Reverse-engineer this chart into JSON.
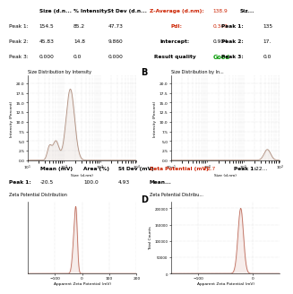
{
  "background_color": "#ffffff",
  "plot_bg": "#ffffff",
  "grid_color": "#d0d0d0",
  "line_color_left": "#b09080",
  "line_color_right": "#c07060",
  "red_text": "#cc2200",
  "green_text": "#009900",
  "table_left_headers": [
    "Size (d.n...",
    "% Intensity:",
    "St Dev (d.n..."
  ],
  "table_left_rows": [
    [
      "Peak 1:",
      "154.5",
      "85.2",
      "47.73"
    ],
    [
      "Peak 2:",
      "45.83",
      "14.8",
      "9.860"
    ],
    [
      "Peak 3:",
      "0.000",
      "0.0",
      "0.000"
    ]
  ],
  "z_average_label": "Z-Average (d.nm):",
  "z_average_value": "138.9",
  "pdi_label": "PdI:",
  "pdi_value": "0.343",
  "intercept_label": "Intercept:",
  "intercept_value": "0.934",
  "result_label": "Result quality",
  "result_value": "Good",
  "right_peaks_header": "Siz...",
  "right_peak1_val": "135",
  "right_peak2_val": "17.",
  "right_peak3_val": "0.0",
  "title_A": "Size Distribution by Intensity",
  "title_B": "Size Distribution by In...",
  "label_B": "B",
  "label_D": "D",
  "xlabel_size": "Size (d.nm)",
  "ylabel_A": "Intensity (Percent)",
  "ylabel_B": "Intensity (Percent)",
  "zeta_mean_label": "Mean (mV)",
  "zeta_area_label": "Area (%)",
  "zeta_stdev_label": "St Dev (mV)",
  "zeta_peak1_label": "Peak 1:",
  "zeta_mean_val": "-20.5",
  "zeta_area_val": "100.0",
  "zeta_stdev_val": "4.93",
  "zeta_right_label": "Zeta Potential (mV):",
  "zeta_right_value": "-22.7",
  "zeta_right_peak1_label": "Peak 1:",
  "zeta_right_peak1_val": "-22...",
  "title_C": "Zeta Potential Distribution",
  "title_D": "Zeta Potential Distribu...",
  "xlabel_zeta": "Apparent Zeta Potential (mV)",
  "ylabel_D": "Total Counts"
}
